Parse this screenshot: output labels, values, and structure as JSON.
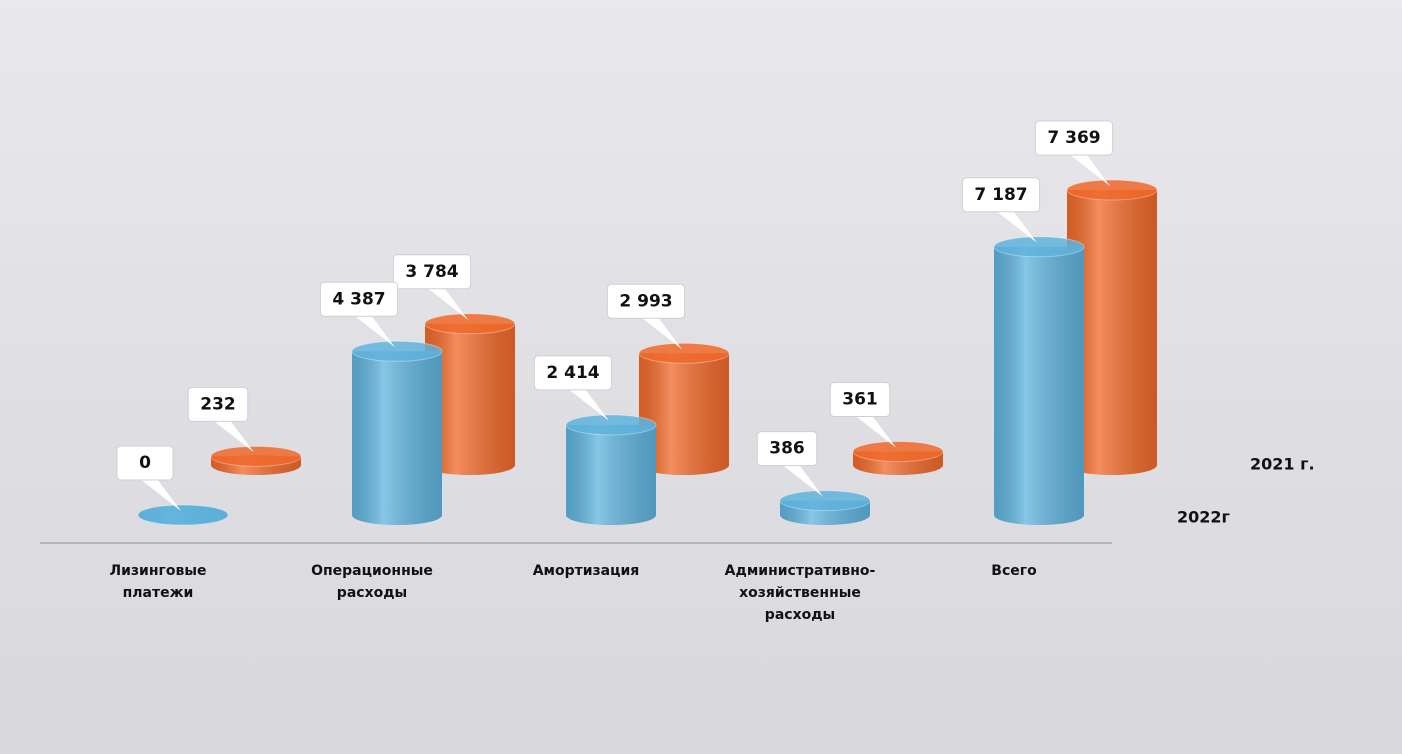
{
  "chart_data": {
    "type": "bar3d",
    "categories": [
      "Лизинговые платежи",
      "Операционные расходы",
      "Амортизация",
      "Административно-хозяйственные расходы",
      "Всего"
    ],
    "series": [
      {
        "name": "2022г",
        "color": "#5fb3dd",
        "values": [
          0,
          4387,
          2414,
          386,
          7187
        ],
        "value_labels": [
          "0",
          "4 387",
          "2 414",
          "386",
          "7 187"
        ]
      },
      {
        "name": "2021 г.",
        "color": "#f0692a",
        "values": [
          232,
          3784,
          2993,
          361,
          7369
        ],
        "value_labels": [
          "232",
          "3 784",
          "2 993",
          "361",
          "7 369"
        ]
      }
    ]
  }
}
